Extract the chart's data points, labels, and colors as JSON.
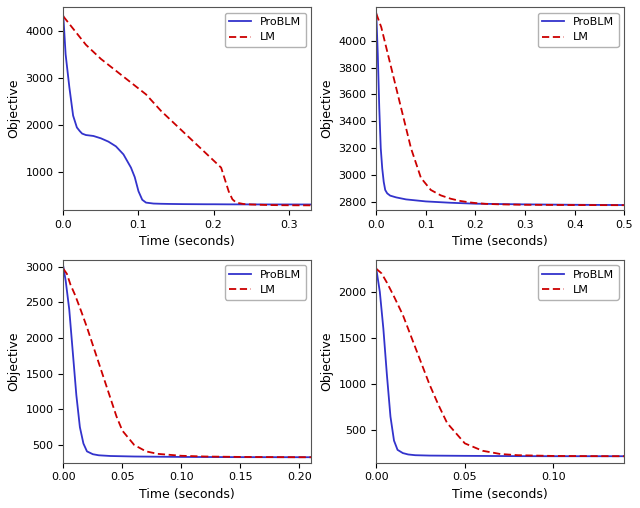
{
  "subplots": [
    {
      "xlabel": "Time (seconds)",
      "ylabel": "Objective",
      "xlim": [
        0,
        0.33
      ],
      "ylim": [
        200,
        4500
      ],
      "yticks": [
        1000,
        2000,
        3000,
        4000
      ],
      "xticks": [
        0.0,
        0.1,
        0.2,
        0.3
      ],
      "problm_x": [
        0.0,
        0.003,
        0.008,
        0.013,
        0.018,
        0.022,
        0.025,
        0.03,
        0.035,
        0.04,
        0.05,
        0.06,
        0.07,
        0.08,
        0.09,
        0.095,
        0.1,
        0.105,
        0.11,
        0.12,
        0.13,
        0.14,
        0.15,
        0.16,
        0.17,
        0.18,
        0.19,
        0.2,
        0.21,
        0.22,
        0.25,
        0.28,
        0.3,
        0.33
      ],
      "problm_y": [
        4300,
        3500,
        2800,
        2200,
        1950,
        1870,
        1820,
        1790,
        1780,
        1770,
        1720,
        1650,
        1550,
        1380,
        1100,
        900,
        600,
        420,
        360,
        340,
        335,
        332,
        330,
        328,
        327,
        326,
        325,
        325,
        324,
        323,
        322,
        321,
        321,
        320
      ],
      "lm_x": [
        0.0,
        0.005,
        0.015,
        0.03,
        0.05,
        0.07,
        0.09,
        0.11,
        0.13,
        0.15,
        0.17,
        0.19,
        0.21,
        0.215,
        0.22,
        0.225,
        0.23,
        0.24,
        0.25,
        0.27,
        0.29,
        0.31,
        0.33
      ],
      "lm_y": [
        4300,
        4200,
        4000,
        3700,
        3400,
        3150,
        2900,
        2650,
        2300,
        2000,
        1700,
        1400,
        1100,
        850,
        600,
        430,
        360,
        330,
        320,
        310,
        305,
        303,
        302
      ]
    },
    {
      "xlabel": "Time (seconds)",
      "ylabel": "Objective",
      "xlim": [
        0,
        0.5
      ],
      "ylim": [
        2740,
        4250
      ],
      "yticks": [
        2800,
        3000,
        3200,
        3400,
        3600,
        3800,
        4000
      ],
      "xticks": [
        0.0,
        0.1,
        0.2,
        0.3,
        0.4,
        0.5
      ],
      "problm_x": [
        0.0,
        0.003,
        0.006,
        0.009,
        0.012,
        0.015,
        0.018,
        0.022,
        0.028,
        0.04,
        0.06,
        0.1,
        0.15,
        0.2,
        0.3,
        0.4,
        0.5
      ],
      "problm_y": [
        4200,
        3900,
        3500,
        3200,
        3050,
        2950,
        2890,
        2865,
        2848,
        2835,
        2820,
        2805,
        2795,
        2788,
        2783,
        2780,
        2778
      ],
      "lm_x": [
        0.0,
        0.005,
        0.01,
        0.02,
        0.03,
        0.05,
        0.07,
        0.09,
        0.11,
        0.13,
        0.15,
        0.17,
        0.19,
        0.2,
        0.21,
        0.22,
        0.25,
        0.3,
        0.4,
        0.5
      ],
      "lm_y": [
        4200,
        4150,
        4100,
        3950,
        3800,
        3500,
        3200,
        2980,
        2890,
        2850,
        2825,
        2808,
        2797,
        2793,
        2790,
        2787,
        2783,
        2780,
        2778,
        2777
      ]
    },
    {
      "xlabel": "Time (seconds)",
      "ylabel": "Objective",
      "xlim": [
        0,
        0.21
      ],
      "ylim": [
        250,
        3100
      ],
      "yticks": [
        500,
        1000,
        1500,
        2000,
        2500,
        3000
      ],
      "xticks": [
        0.0,
        0.05,
        0.1,
        0.15,
        0.2
      ],
      "problm_x": [
        0.0,
        0.002,
        0.005,
        0.008,
        0.011,
        0.014,
        0.017,
        0.02,
        0.025,
        0.03,
        0.04,
        0.06,
        0.1,
        0.15,
        0.2,
        0.21
      ],
      "problm_y": [
        3000,
        2800,
        2400,
        1800,
        1200,
        750,
        520,
        410,
        370,
        355,
        345,
        338,
        332,
        329,
        328,
        328
      ],
      "lm_x": [
        0.0,
        0.003,
        0.006,
        0.01,
        0.015,
        0.02,
        0.025,
        0.03,
        0.035,
        0.04,
        0.045,
        0.05,
        0.06,
        0.07,
        0.08,
        0.1,
        0.12,
        0.15,
        0.18,
        0.2,
        0.21
      ],
      "lm_y": [
        2970,
        2900,
        2750,
        2600,
        2380,
        2150,
        1900,
        1650,
        1400,
        1150,
        900,
        700,
        500,
        410,
        375,
        348,
        338,
        332,
        329,
        328,
        328
      ]
    },
    {
      "xlabel": "Time (seconds)",
      "ylabel": "Objective",
      "xlim": [
        0,
        0.14
      ],
      "ylim": [
        150,
        2350
      ],
      "yticks": [
        500,
        1000,
        1500,
        2000
      ],
      "xticks": [
        0.0,
        0.05,
        0.1
      ],
      "problm_x": [
        0.0,
        0.002,
        0.004,
        0.006,
        0.008,
        0.01,
        0.012,
        0.015,
        0.018,
        0.022,
        0.03,
        0.05,
        0.08,
        0.1,
        0.12,
        0.14
      ],
      "problm_y": [
        2250,
        2000,
        1600,
        1100,
        650,
        390,
        290,
        255,
        240,
        232,
        228,
        225,
        222,
        221,
        221,
        221
      ],
      "lm_x": [
        0.0,
        0.003,
        0.006,
        0.01,
        0.015,
        0.02,
        0.025,
        0.03,
        0.035,
        0.04,
        0.05,
        0.06,
        0.07,
        0.08,
        0.1,
        0.12,
        0.14
      ],
      "lm_y": [
        2250,
        2200,
        2100,
        1950,
        1750,
        1500,
        1250,
        1000,
        780,
        580,
        360,
        280,
        245,
        232,
        224,
        222,
        221
      ]
    }
  ],
  "blue_color": "#3333cc",
  "red_color": "#cc0000",
  "legend_labels": [
    "ProBLM",
    "LM"
  ],
  "bg_color": "#ffffff"
}
